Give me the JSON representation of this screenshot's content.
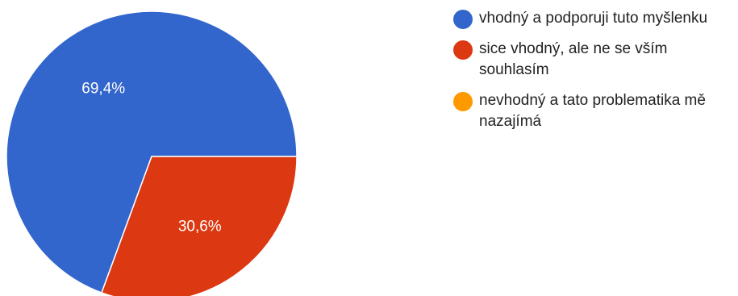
{
  "chart_data": {
    "type": "pie",
    "categories": [
      "vhodný a podporuji tuto myšlenku",
      "sice vhodný, ale ne se vším souhlasím",
      "nevhodný a tato problematika mě nazajímá"
    ],
    "values": [
      69.4,
      30.6,
      0
    ],
    "value_labels": [
      "69,4%",
      "30,6%",
      ""
    ],
    "colors": [
      "#3366cc",
      "#dc3912",
      "#ff9900"
    ],
    "legend_position": "right"
  }
}
